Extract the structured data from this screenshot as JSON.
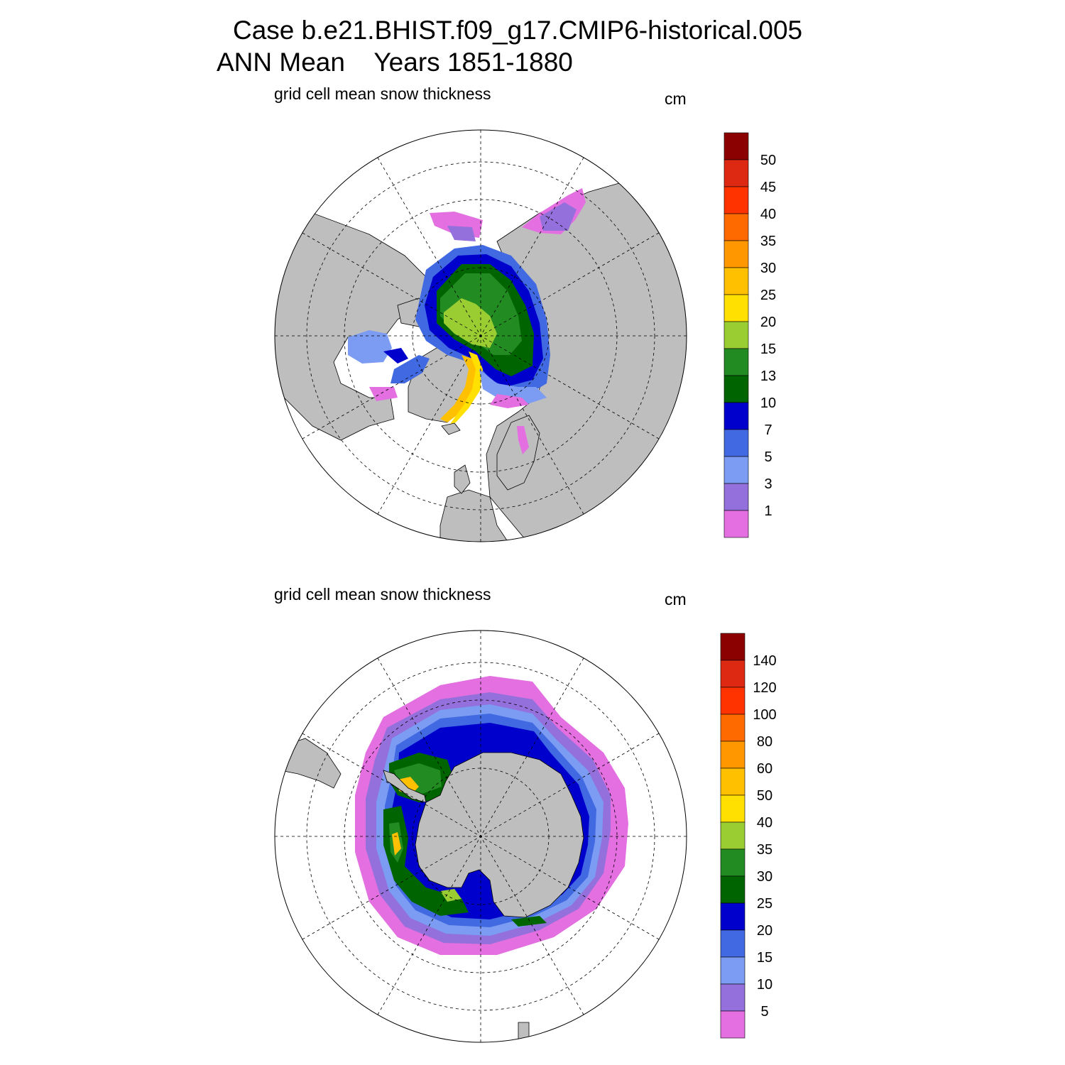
{
  "title_line1": "Case b.e21.BHIST.f09_g17.CMIP6-historical.005",
  "title_line2": "ANN Mean    Years 1851-1880",
  "colors": {
    "land": "#bebebe",
    "ocean": "#ffffff",
    "scale": [
      "#e36fe0",
      "#9370db",
      "#7b9cf2",
      "#4169e1",
      "#0000cd",
      "#006400",
      "#228b22",
      "#9acd32",
      "#ffe000",
      "#ffc000",
      "#ff9800",
      "#ff6a00",
      "#ff3300",
      "#dd2812",
      "#8b0000"
    ]
  },
  "chart_data": [
    {
      "type": "heatmap",
      "projection": "north polar stereographic",
      "region": "Arctic",
      "title": "grid cell mean snow thickness",
      "units": "cm",
      "colorbar_levels": [
        1,
        3,
        5,
        7,
        10,
        13,
        15,
        20,
        25,
        30,
        35,
        40,
        45,
        50
      ],
      "colorbar_labels": [
        "1",
        "3",
        "5",
        "7",
        "10",
        "13",
        "15",
        "20",
        "25",
        "30",
        "35",
        "40",
        "45",
        "50"
      ],
      "grid": "dashed lat/lon lines"
    },
    {
      "type": "heatmap",
      "projection": "south polar stereographic",
      "region": "Antarctic",
      "title": "grid cell mean snow thickness",
      "units": "cm",
      "colorbar_levels": [
        5,
        10,
        15,
        20,
        25,
        30,
        35,
        40,
        50,
        60,
        80,
        100,
        120,
        140
      ],
      "colorbar_labels": [
        "5",
        "10",
        "15",
        "20",
        "25",
        "30",
        "35",
        "40",
        "50",
        "60",
        "80",
        "100",
        "120",
        "140"
      ],
      "grid": "dashed lat/lon lines"
    }
  ]
}
